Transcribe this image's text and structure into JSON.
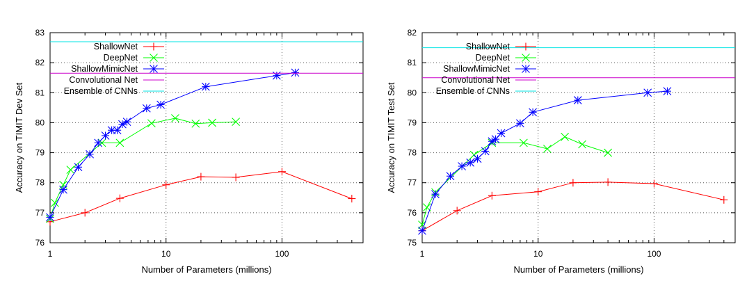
{
  "chart_data": [
    {
      "type": "line",
      "xlabel": "Number of Parameters (millions)",
      "ylabel": "Accuracy on TIMIT Dev Set",
      "xscale": "log",
      "xlim": [
        1,
        500
      ],
      "ylim": [
        76,
        83
      ],
      "xticks": [
        {
          "v": 1,
          "label": "1"
        },
        {
          "v": 10,
          "label": "10"
        },
        {
          "v": 100,
          "label": "100"
        }
      ],
      "yticks": [
        76,
        77,
        78,
        79,
        80,
        81,
        82,
        83
      ],
      "grid": true,
      "legend_position": "top-left",
      "series": [
        {
          "name": "ShallowNet",
          "color": "#ff0000",
          "marker": "plus",
          "points": [
            [
              1,
              76.7
            ],
            [
              2,
              77.0
            ],
            [
              4,
              77.48
            ],
            [
              10,
              77.93
            ],
            [
              20,
              78.2
            ],
            [
              40,
              78.18
            ],
            [
              100,
              78.37
            ],
            [
              400,
              77.47
            ]
          ]
        },
        {
          "name": "DeepNet",
          "color": "#00ff00",
          "marker": "x",
          "points": [
            [
              1,
              76.8
            ],
            [
              1.1,
              77.33
            ],
            [
              1.3,
              77.93
            ],
            [
              1.5,
              78.43
            ],
            [
              2.8,
              79.33
            ],
            [
              4,
              79.33
            ],
            [
              7.5,
              79.98
            ],
            [
              12,
              80.15
            ],
            [
              18,
              79.97
            ],
            [
              25,
              80.0
            ],
            [
              40,
              80.03
            ]
          ]
        },
        {
          "name": "ShallowMimicNet",
          "color": "#0000ff",
          "marker": "star",
          "points": [
            [
              1,
              76.85
            ],
            [
              1.3,
              77.77
            ],
            [
              1.75,
              78.52
            ],
            [
              2.2,
              78.95
            ],
            [
              2.6,
              79.33
            ],
            [
              3,
              79.57
            ],
            [
              3.4,
              79.75
            ],
            [
              3.8,
              79.75
            ],
            [
              4.2,
              79.95
            ],
            [
              4.6,
              80.03
            ],
            [
              6.8,
              80.48
            ],
            [
              9,
              80.6
            ],
            [
              22,
              81.2
            ],
            [
              90,
              81.57
            ],
            [
              130,
              81.67
            ]
          ]
        },
        {
          "name": "Convolutional Net",
          "color": "#cc00cc",
          "marker": "none",
          "hline": 81.65
        },
        {
          "name": "Ensemble of CNNs",
          "color": "#00e5e5",
          "marker": "none",
          "hline": 82.7
        }
      ]
    },
    {
      "type": "line",
      "xlabel": "Number of Parameters (millions)",
      "ylabel": "Accuracy on TIMIT Test Set",
      "xscale": "log",
      "xlim": [
        1,
        500
      ],
      "ylim": [
        75,
        82
      ],
      "xticks": [
        {
          "v": 1,
          "label": "1"
        },
        {
          "v": 10,
          "label": "10"
        },
        {
          "v": 100,
          "label": "100"
        }
      ],
      "yticks": [
        75,
        76,
        77,
        78,
        79,
        80,
        81,
        82
      ],
      "grid": true,
      "legend_position": "top-left",
      "series": [
        {
          "name": "ShallowNet",
          "color": "#ff0000",
          "marker": "plus",
          "points": [
            [
              1,
              75.4
            ],
            [
              2,
              76.07
            ],
            [
              4,
              76.57
            ],
            [
              10,
              76.7
            ],
            [
              20,
              77.0
            ],
            [
              40,
              77.02
            ],
            [
              100,
              76.97
            ],
            [
              400,
              76.43
            ]
          ]
        },
        {
          "name": "DeepNet",
          "color": "#00ff00",
          "marker": "x",
          "points": [
            [
              1,
              75.6
            ],
            [
              1.1,
              76.18
            ],
            [
              1.3,
              76.68
            ],
            [
              2.8,
              77.93
            ],
            [
              4,
              78.33
            ],
            [
              7.5,
              78.33
            ],
            [
              12,
              78.13
            ],
            [
              17,
              78.53
            ],
            [
              24,
              78.28
            ],
            [
              40,
              78.0
            ]
          ]
        },
        {
          "name": "ShallowMimicNet",
          "color": "#0000ff",
          "marker": "star",
          "points": [
            [
              1,
              75.4
            ],
            [
              1.3,
              76.62
            ],
            [
              1.75,
              77.22
            ],
            [
              2.2,
              77.55
            ],
            [
              2.6,
              77.67
            ],
            [
              3,
              77.8
            ],
            [
              3.5,
              78.05
            ],
            [
              4,
              78.38
            ],
            [
              4.3,
              78.45
            ],
            [
              4.8,
              78.65
            ],
            [
              7,
              78.98
            ],
            [
              9,
              79.35
            ],
            [
              22,
              79.75
            ],
            [
              88,
              80.0
            ],
            [
              130,
              80.05
            ]
          ]
        },
        {
          "name": "Convolutional Net",
          "color": "#cc00cc",
          "marker": "none",
          "hline": 80.5
        },
        {
          "name": "Ensemble of CNNs",
          "color": "#00e5e5",
          "marker": "none",
          "hline": 81.5
        }
      ]
    }
  ]
}
